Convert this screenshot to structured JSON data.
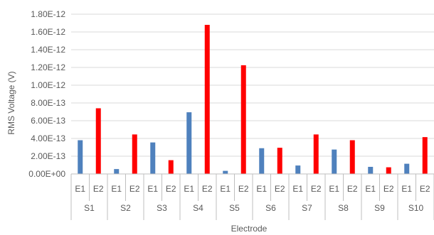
{
  "chart_data": {
    "type": "bar",
    "title": "",
    "xlabel": "Electrode",
    "ylabel": "RMS Voltage (V)",
    "ylim": [
      0,
      1.8e-12
    ],
    "yticks": [
      0,
      2e-13,
      4e-13,
      6e-13,
      8e-13,
      1e-12,
      1.2e-12,
      1.4e-12,
      1.6e-12,
      1.8e-12
    ],
    "ytick_labels": [
      "0.00E+00",
      "2.00E-13",
      "4.00E-13",
      "6.00E-13",
      "8.00E-13",
      "1.00E-12",
      "1.20E-12",
      "1.40E-12",
      "1.60E-12",
      "1.80E-12"
    ],
    "grid": true,
    "legend": "none",
    "groups": [
      {
        "label": "S1",
        "items": [
          {
            "label": "E1",
            "value": 3.8e-13,
            "color": "#4F81BD"
          },
          {
            "label": "E2",
            "value": 7.4e-13,
            "color": "#FF0000"
          }
        ]
      },
      {
        "label": "S2",
        "items": [
          {
            "label": "E1",
            "value": 5.5e-14,
            "color": "#4F81BD"
          },
          {
            "label": "E2",
            "value": 4.45e-13,
            "color": "#FF0000"
          }
        ]
      },
      {
        "label": "S3",
        "items": [
          {
            "label": "E1",
            "value": 3.55e-13,
            "color": "#4F81BD"
          },
          {
            "label": "E2",
            "value": 1.55e-13,
            "color": "#FF0000"
          }
        ]
      },
      {
        "label": "S4",
        "items": [
          {
            "label": "E1",
            "value": 6.95e-13,
            "color": "#4F81BD"
          },
          {
            "label": "E2",
            "value": 1.68e-12,
            "color": "#FF0000"
          }
        ]
      },
      {
        "label": "S5",
        "items": [
          {
            "label": "E1",
            "value": 3.5e-14,
            "color": "#4F81BD"
          },
          {
            "label": "E2",
            "value": 1.225e-12,
            "color": "#FF0000"
          }
        ]
      },
      {
        "label": "S6",
        "items": [
          {
            "label": "E1",
            "value": 2.9e-13,
            "color": "#4F81BD"
          },
          {
            "label": "E2",
            "value": 2.95e-13,
            "color": "#FF0000"
          }
        ]
      },
      {
        "label": "S7",
        "items": [
          {
            "label": "E1",
            "value": 9.5e-14,
            "color": "#4F81BD"
          },
          {
            "label": "E2",
            "value": 4.45e-13,
            "color": "#FF0000"
          }
        ]
      },
      {
        "label": "S8",
        "items": [
          {
            "label": "E1",
            "value": 2.75e-13,
            "color": "#4F81BD"
          },
          {
            "label": "E2",
            "value": 3.8e-13,
            "color": "#FF0000"
          }
        ]
      },
      {
        "label": "S9",
        "items": [
          {
            "label": "E1",
            "value": 8e-14,
            "color": "#4F81BD"
          },
          {
            "label": "E2",
            "value": 7.5e-14,
            "color": "#FF0000"
          }
        ]
      },
      {
        "label": "S10",
        "items": [
          {
            "label": "E1",
            "value": 1.15e-13,
            "color": "#4F81BD"
          },
          {
            "label": "E2",
            "value": 4.15e-13,
            "color": "#FF0000"
          }
        ]
      }
    ]
  }
}
